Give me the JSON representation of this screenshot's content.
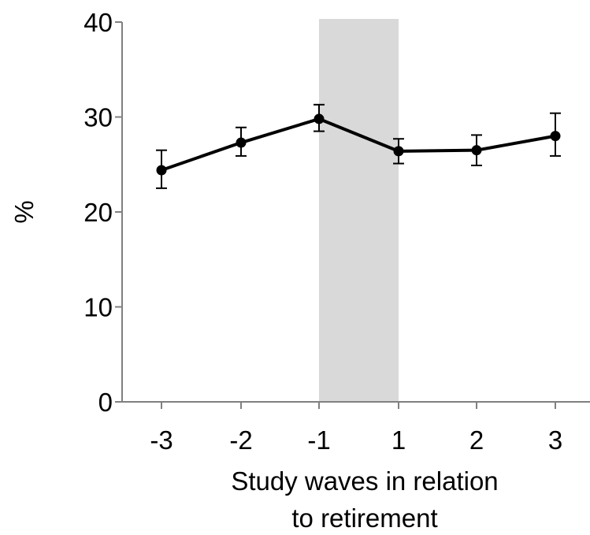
{
  "chart_data": {
    "type": "line",
    "xlabel_lines": [
      "Study waves in relation",
      "to retirement"
    ],
    "ylabel": "%",
    "categories": [
      "-3",
      "-2",
      "-1",
      "1",
      "2",
      "3"
    ],
    "series": [
      {
        "values": [
          24.4,
          27.3,
          29.8,
          26.4,
          26.5,
          28.0
        ],
        "error_low": [
          22.5,
          25.9,
          28.5,
          25.1,
          24.9,
          25.9
        ],
        "error_high": [
          26.5,
          28.9,
          31.3,
          27.7,
          28.1,
          30.4
        ]
      }
    ],
    "ylim": [
      0,
      40
    ],
    "yticks": [
      0,
      10,
      20,
      30,
      40
    ],
    "shaded_band": {
      "from": "-1",
      "to": "1"
    },
    "grid": false,
    "colors": {
      "line": "#000000",
      "band": "#d9d9d9",
      "axis": "#808080"
    }
  }
}
